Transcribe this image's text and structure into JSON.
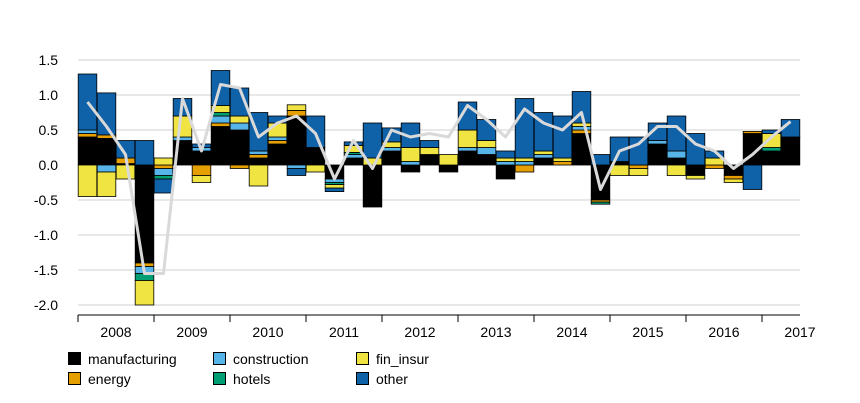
{
  "chart_data": {
    "type": "bar",
    "subtype": "stacked-bar-with-line",
    "title": "",
    "xlabel": "",
    "ylabel": "",
    "ylim": [
      -2.0,
      1.5
    ],
    "yticks": [
      "1.5",
      "1.0",
      "0.5",
      "0.0",
      "-0.5",
      "-1.0",
      "-1.5",
      "-2.0"
    ],
    "ytick_values": [
      1.5,
      1.0,
      0.5,
      0.0,
      -0.5,
      -1.0,
      -1.5,
      -2.0
    ],
    "grid": "horizontal",
    "legend_position": "bottom-left",
    "x_tick_labels": [
      "2008",
      "2009",
      "2010",
      "2011",
      "2012",
      "2013",
      "2014",
      "2015",
      "2016",
      "2017"
    ],
    "periods_per_label": 4,
    "series": [
      {
        "name": "manufacturing",
        "color": "#000000",
        "values": [
          0.4,
          0.38,
          0.02,
          -1.4,
          0.0,
          0.35,
          0.2,
          0.55,
          0.5,
          0.1,
          0.3,
          0.7,
          0.25,
          -0.2,
          0.1,
          -0.6,
          0.2,
          -0.1,
          0.15,
          -0.1,
          0.2,
          0.15,
          -0.2,
          0.0,
          0.1,
          0.0,
          0.45,
          -0.5,
          0.05,
          0.0,
          0.3,
          0.1,
          -0.15,
          0.0,
          -0.15,
          0.45,
          0.2,
          0.4
        ]
      },
      {
        "name": "energy",
        "color": "#E69F00",
        "values": [
          0.05,
          0.05,
          0.08,
          -0.05,
          -0.05,
          0.0,
          -0.15,
          0.05,
          -0.05,
          0.05,
          0.05,
          0.08,
          0.0,
          0.0,
          0.0,
          0.0,
          0.0,
          0.0,
          0.0,
          0.0,
          0.0,
          0.0,
          0.0,
          -0.1,
          0.0,
          0.05,
          0.05,
          -0.03,
          0.0,
          -0.05,
          0.0,
          0.0,
          0.0,
          -0.05,
          -0.05,
          0.03,
          0.0,
          0.0
        ]
      },
      {
        "name": "construction",
        "color": "#56B4E9",
        "values": [
          0.05,
          -0.1,
          0.0,
          -0.1,
          -0.1,
          0.05,
          0.05,
          0.1,
          0.1,
          0.05,
          0.05,
          -0.05,
          0.0,
          -0.05,
          0.05,
          0.0,
          0.05,
          0.05,
          0.0,
          0.0,
          0.05,
          0.1,
          0.05,
          0.05,
          0.05,
          0.0,
          0.05,
          0.0,
          0.0,
          0.0,
          0.05,
          0.1,
          0.0,
          0.0,
          0.0,
          0.0,
          0.0,
          0.0
        ]
      },
      {
        "name": "hotels",
        "color": "#009E73",
        "values": [
          0.0,
          0.0,
          0.0,
          -0.1,
          -0.05,
          0.0,
          0.0,
          0.05,
          0.0,
          0.0,
          0.0,
          0.0,
          0.0,
          -0.03,
          0.03,
          0.0,
          0.0,
          0.0,
          0.0,
          0.0,
          0.0,
          0.0,
          0.0,
          0.0,
          0.0,
          0.0,
          0.0,
          -0.03,
          0.0,
          0.0,
          0.0,
          0.0,
          0.0,
          0.0,
          0.0,
          0.0,
          0.05,
          0.0
        ]
      },
      {
        "name": "fin_insur",
        "color": "#F0E442",
        "values": [
          -0.45,
          -0.35,
          -0.2,
          -0.35,
          0.1,
          0.3,
          -0.1,
          0.1,
          0.1,
          -0.3,
          0.2,
          0.08,
          -0.1,
          -0.05,
          0.1,
          0.1,
          0.08,
          0.2,
          0.1,
          0.15,
          0.25,
          0.1,
          0.05,
          0.05,
          0.05,
          0.05,
          0.05,
          0.0,
          -0.15,
          -0.1,
          0.0,
          -0.15,
          -0.05,
          0.1,
          -0.05,
          0.0,
          0.2,
          0.0
        ]
      },
      {
        "name": "other",
        "color": "#0F61A8",
        "values": [
          0.8,
          0.6,
          0.25,
          0.35,
          -0.2,
          0.25,
          0.05,
          0.5,
          0.4,
          0.55,
          0.1,
          -0.1,
          0.45,
          -0.05,
          0.05,
          0.5,
          0.2,
          0.35,
          0.1,
          0.0,
          0.4,
          0.3,
          0.1,
          0.85,
          0.55,
          0.6,
          0.45,
          0.15,
          0.35,
          0.4,
          0.25,
          0.5,
          0.45,
          0.1,
          0.0,
          -0.35,
          0.05,
          0.25
        ]
      },
      {
        "name": "total",
        "color": "#D9D9D9",
        "values": [
          0.9,
          0.55,
          0.15,
          -1.55,
          -1.55,
          0.95,
          0.2,
          1.15,
          1.1,
          0.4,
          0.6,
          0.7,
          0.45,
          -0.2,
          0.35,
          -0.05,
          0.5,
          0.4,
          0.45,
          0.4,
          0.85,
          0.65,
          0.4,
          0.8,
          0.6,
          0.5,
          0.75,
          -0.35,
          0.2,
          0.3,
          0.55,
          0.55,
          0.3,
          0.2,
          -0.05,
          0.15,
          0.4,
          0.62
        ]
      }
    ]
  }
}
